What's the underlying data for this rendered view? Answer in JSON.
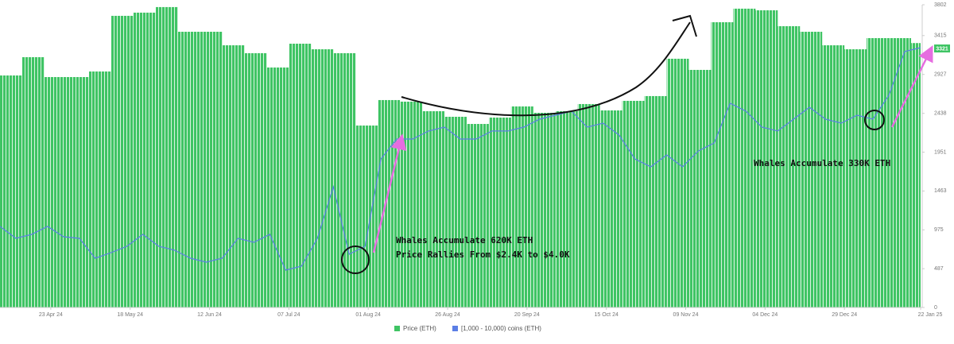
{
  "chart_data": {
    "type": "bar",
    "xlim": [
      "2024-04-07",
      "2025-01-22"
    ],
    "ylim": [
      0,
      3802
    ],
    "yticks": [
      0,
      487,
      975,
      1463,
      1951,
      2438,
      2927,
      3415,
      3802
    ],
    "xticks": [
      {
        "value": "2024-04-23",
        "label": "23 Apr 24"
      },
      {
        "value": "2024-05-18",
        "label": "18 May 24"
      },
      {
        "value": "2024-06-12",
        "label": "12 Jun 24"
      },
      {
        "value": "2024-07-07",
        "label": "07 Jul 24"
      },
      {
        "value": "2024-08-01",
        "label": "01 Aug 24"
      },
      {
        "value": "2024-08-26",
        "label": "26 Aug 24"
      },
      {
        "value": "2024-09-20",
        "label": "20 Sep 24"
      },
      {
        "value": "2024-10-15",
        "label": "15 Oct 24"
      },
      {
        "value": "2024-11-09",
        "label": "09 Nov 24"
      },
      {
        "value": "2024-12-04",
        "label": "04 Dec 24"
      },
      {
        "value": "2024-12-29",
        "label": "29 Dec 24"
      },
      {
        "value": "2025-01-22",
        "label": "22 Jan 25"
      }
    ],
    "grid": false,
    "legend": "bottom",
    "annotations": [
      "Whales Accumulate 620K ETH",
      "Price Rallies From $2.4K to $4.0K",
      "Whales Accumulate 330K ETH"
    ],
    "series": [
      {
        "name": "Price (ETH)",
        "type": "bar",
        "color": "#3fc464",
        "x": [
          "2024-04-07",
          "2024-04-14",
          "2024-04-21",
          "2024-04-28",
          "2024-05-05",
          "2024-05-12",
          "2024-05-19",
          "2024-05-26",
          "2024-06-02",
          "2024-06-09",
          "2024-06-16",
          "2024-06-23",
          "2024-06-30",
          "2024-07-07",
          "2024-07-14",
          "2024-07-21",
          "2024-07-28",
          "2024-08-04",
          "2024-08-11",
          "2024-08-18",
          "2024-08-25",
          "2024-09-01",
          "2024-09-08",
          "2024-09-15",
          "2024-09-22",
          "2024-09-29",
          "2024-10-06",
          "2024-10-13",
          "2024-10-20",
          "2024-10-27",
          "2024-11-03",
          "2024-11-10",
          "2024-11-17",
          "2024-11-24",
          "2024-12-01",
          "2024-12-08",
          "2024-12-15",
          "2024-12-22",
          "2024-12-29",
          "2025-01-05",
          "2025-01-12",
          "2025-01-19"
        ],
        "values": [
          2914,
          3144,
          2894,
          2894,
          2964,
          3663,
          3703,
          3773,
          3463,
          3463,
          3293,
          3194,
          3014,
          3313,
          3243,
          3194,
          2285,
          2605,
          2585,
          2465,
          2395,
          2305,
          2385,
          2525,
          2445,
          2465,
          2555,
          2475,
          2595,
          2655,
          3124,
          2984,
          3583,
          3753,
          3733,
          3533,
          3463,
          3293,
          3243,
          3383,
          3383,
          3321
        ]
      },
      {
        "name": "[1,000 - 10,000) coins (ETH)",
        "type": "line",
        "color": "#5b7ee5",
        "x": [
          "2024-04-07",
          "2024-04-12",
          "2024-04-17",
          "2024-04-22",
          "2024-04-27",
          "2024-05-02",
          "2024-05-07",
          "2024-05-12",
          "2024-05-17",
          "2024-05-22",
          "2024-05-27",
          "2024-06-01",
          "2024-06-06",
          "2024-06-11",
          "2024-06-16",
          "2024-06-21",
          "2024-06-26",
          "2024-07-01",
          "2024-07-06",
          "2024-07-11",
          "2024-07-16",
          "2024-07-21",
          "2024-07-26",
          "2024-07-31",
          "2024-08-05",
          "2024-08-10",
          "2024-08-15",
          "2024-08-20",
          "2024-08-25",
          "2024-08-30",
          "2024-09-04",
          "2024-09-09",
          "2024-09-14",
          "2024-09-19",
          "2024-09-24",
          "2024-09-29",
          "2024-10-04",
          "2024-10-09",
          "2024-10-14",
          "2024-10-19",
          "2024-10-24",
          "2024-10-29",
          "2024-11-03",
          "2024-11-08",
          "2024-11-13",
          "2024-11-18",
          "2024-11-23",
          "2024-11-28",
          "2024-12-03",
          "2024-12-08",
          "2024-12-13",
          "2024-12-18",
          "2024-12-23",
          "2024-12-28",
          "2025-01-02",
          "2025-01-07",
          "2025-01-12",
          "2025-01-17",
          "2025-01-22"
        ],
        "values": [
          1018,
          868,
          918,
          1018,
          888,
          868,
          619,
          689,
          768,
          918,
          768,
          719,
          619,
          569,
          619,
          868,
          818,
          918,
          469,
          519,
          868,
          1517,
          669,
          768,
          1866,
          2116,
          2116,
          2216,
          2265,
          2116,
          2116,
          2216,
          2216,
          2265,
          2365,
          2415,
          2465,
          2265,
          2315,
          2166,
          1866,
          1766,
          1916,
          1766,
          1966,
          2066,
          2565,
          2465,
          2265,
          2216,
          2365,
          2515,
          2365,
          2315,
          2415,
          2365,
          2665,
          3214,
          3263
        ]
      }
    ]
  }
}
